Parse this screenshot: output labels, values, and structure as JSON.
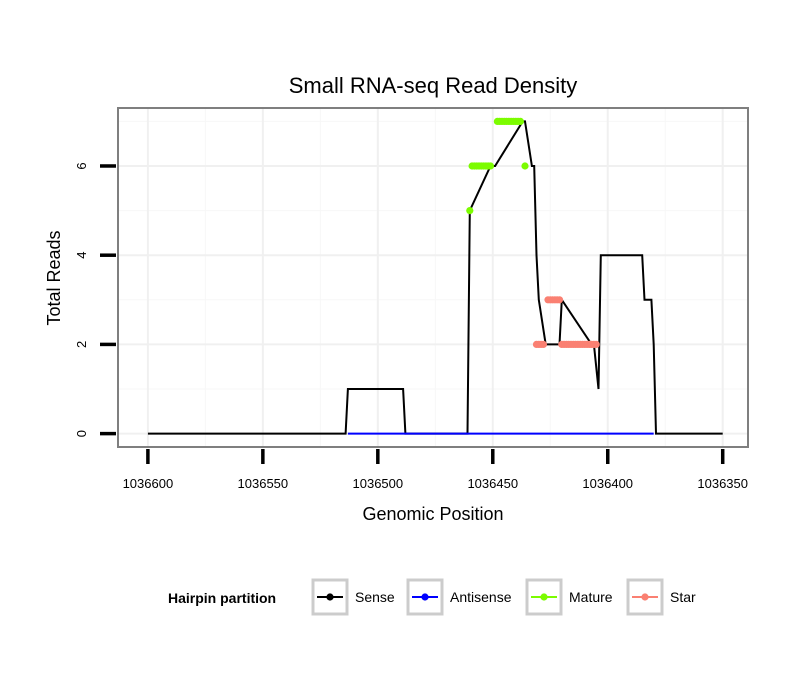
{
  "chart_data": {
    "type": "line",
    "title": "Small RNA-seq Read Density",
    "xlabel": "Genomic Position",
    "ylabel": "Total Reads",
    "x_reversed": true,
    "xlim": [
      1036613,
      1036339
    ],
    "ylim": [
      -0.3,
      7.3
    ],
    "x_ticks": [
      1036600,
      1036550,
      1036500,
      1036450,
      1036400,
      1036350
    ],
    "x_tick_labels": [
      "1036600",
      "1036550",
      "1036500",
      "1036450",
      "1036400",
      "1036350"
    ],
    "y_ticks": [
      0,
      2,
      4,
      6
    ],
    "y_tick_labels": [
      "0",
      "2",
      "4",
      "6"
    ],
    "grid": true,
    "legend": {
      "title": "Hairpin partition",
      "position": "bottom",
      "entries": [
        {
          "label": "Sense",
          "color": "#000000"
        },
        {
          "label": "Antisense",
          "color": "#0000ff"
        },
        {
          "label": "Mature",
          "color": "#7cfc00"
        },
        {
          "label": "Star",
          "color": "#fa8072"
        }
      ]
    },
    "series": [
      {
        "name": "Sense",
        "color": "#000000",
        "x": [
          1036600,
          1036514,
          1036513,
          1036489,
          1036488,
          1036461,
          1036460,
          1036451,
          1036449,
          1036437,
          1036436,
          1036433,
          1036432,
          1036431,
          1036430,
          1036427,
          1036425,
          1036421,
          1036420,
          1036407,
          1036406,
          1036404,
          1036403,
          1036385,
          1036384,
          1036381,
          1036380,
          1036379,
          1036350
        ],
        "y": [
          0,
          0,
          1,
          1,
          0,
          0,
          5,
          6,
          6,
          7,
          7,
          6,
          6,
          4,
          3,
          2,
          2,
          2,
          3,
          2,
          2,
          1,
          4,
          4,
          3,
          3,
          2,
          0,
          0
        ]
      },
      {
        "name": "Antisense",
        "color": "#0000ff",
        "x": [
          1036513,
          1036489,
          1036460,
          1036380
        ],
        "y": [
          0,
          0,
          0,
          0
        ]
      }
    ],
    "point_series": [
      {
        "name": "Mature",
        "color": "#7cfc00",
        "points": [
          {
            "x": 1036460,
            "y": 5
          },
          {
            "x": 1036459,
            "y": 6
          },
          {
            "x": 1036458,
            "y": 6
          },
          {
            "x": 1036457,
            "y": 6
          },
          {
            "x": 1036456,
            "y": 6
          },
          {
            "x": 1036455,
            "y": 6
          },
          {
            "x": 1036454,
            "y": 6
          },
          {
            "x": 1036453,
            "y": 6
          },
          {
            "x": 1036452,
            "y": 6
          },
          {
            "x": 1036451,
            "y": 6
          },
          {
            "x": 1036448,
            "y": 7
          },
          {
            "x": 1036447,
            "y": 7
          },
          {
            "x": 1036446,
            "y": 7
          },
          {
            "x": 1036445,
            "y": 7
          },
          {
            "x": 1036444,
            "y": 7
          },
          {
            "x": 1036443,
            "y": 7
          },
          {
            "x": 1036442,
            "y": 7
          },
          {
            "x": 1036441,
            "y": 7
          },
          {
            "x": 1036440,
            "y": 7
          },
          {
            "x": 1036439,
            "y": 7
          },
          {
            "x": 1036438,
            "y": 7
          },
          {
            "x": 1036436,
            "y": 6
          }
        ]
      },
      {
        "name": "Star",
        "color": "#fa8072",
        "points": [
          {
            "x": 1036431,
            "y": 2
          },
          {
            "x": 1036430,
            "y": 2
          },
          {
            "x": 1036429,
            "y": 2
          },
          {
            "x": 1036428,
            "y": 2
          },
          {
            "x": 1036426,
            "y": 3
          },
          {
            "x": 1036425,
            "y": 3
          },
          {
            "x": 1036424,
            "y": 3
          },
          {
            "x": 1036423,
            "y": 3
          },
          {
            "x": 1036422,
            "y": 3
          },
          {
            "x": 1036421,
            "y": 3
          },
          {
            "x": 1036420,
            "y": 2
          },
          {
            "x": 1036419,
            "y": 2
          },
          {
            "x": 1036418,
            "y": 2
          },
          {
            "x": 1036417,
            "y": 2
          },
          {
            "x": 1036416,
            "y": 2
          },
          {
            "x": 1036415,
            "y": 2
          },
          {
            "x": 1036414,
            "y": 2
          },
          {
            "x": 1036413,
            "y": 2
          },
          {
            "x": 1036412,
            "y": 2
          },
          {
            "x": 1036411,
            "y": 2
          },
          {
            "x": 1036410,
            "y": 2
          },
          {
            "x": 1036409,
            "y": 2
          },
          {
            "x": 1036408,
            "y": 2
          },
          {
            "x": 1036407,
            "y": 2
          },
          {
            "x": 1036406,
            "y": 2
          },
          {
            "x": 1036405,
            "y": 2
          }
        ]
      }
    ]
  }
}
